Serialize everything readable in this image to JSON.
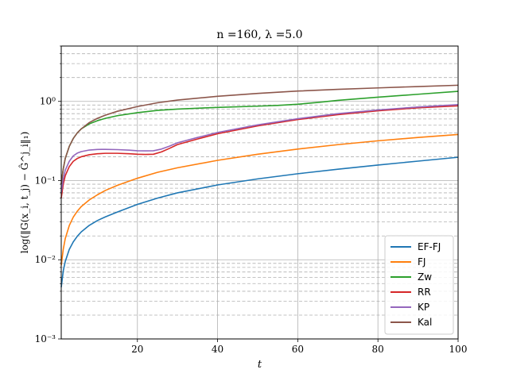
{
  "chart_data": {
    "type": "line",
    "title": "n =160, λ =5.0",
    "xlabel": "t",
    "ylabel": "log(‖G(x_i, t_j) − Ĝ^j_i‖₁)",
    "xscale": "linear",
    "yscale": "log",
    "xlim": [
      1,
      100
    ],
    "ylim": [
      0.001,
      5
    ],
    "x_ticks": [
      20,
      40,
      60,
      80,
      100
    ],
    "x_tick_labels": [
      "20",
      "40",
      "60",
      "80",
      "100"
    ],
    "y_ticks": [
      0.001,
      0.01,
      0.1,
      1
    ],
    "y_tick_labels": [
      "10⁻³",
      "10⁻²",
      "10⁻¹",
      "10⁰"
    ],
    "grid": true,
    "legend_position": "lower-right",
    "series": [
      {
        "name": "EF-FJ",
        "color": "#1f77b4",
        "x": [
          1,
          1.5,
          2,
          3,
          4,
          5,
          6,
          8,
          10,
          12,
          15,
          20,
          25,
          30,
          40,
          50,
          60,
          70,
          80,
          90,
          100
        ],
        "y": [
          0.0045,
          0.0072,
          0.0095,
          0.0135,
          0.0168,
          0.0198,
          0.0225,
          0.0272,
          0.0312,
          0.0348,
          0.04,
          0.05,
          0.06,
          0.07,
          0.088,
          0.105,
          0.122,
          0.139,
          0.157,
          0.176,
          0.197
        ]
      },
      {
        "name": "FJ",
        "color": "#ff7f0e",
        "x": [
          1,
          1.5,
          2,
          3,
          4,
          5,
          6,
          8,
          10,
          12,
          15,
          20,
          25,
          30,
          40,
          50,
          60,
          70,
          80,
          90,
          100
        ],
        "y": [
          0.0085,
          0.0135,
          0.0185,
          0.027,
          0.0345,
          0.041,
          0.047,
          0.057,
          0.066,
          0.075,
          0.087,
          0.107,
          0.127,
          0.145,
          0.18,
          0.215,
          0.25,
          0.284,
          0.318,
          0.35,
          0.382
        ]
      },
      {
        "name": "Zw",
        "color": "#2ca02c",
        "x": [
          1,
          1.5,
          2,
          3,
          4,
          5,
          6,
          8,
          10,
          12,
          15,
          20,
          25,
          30,
          40,
          50,
          55,
          60,
          65,
          70,
          80,
          90,
          100
        ],
        "y": [
          0.09,
          0.14,
          0.19,
          0.27,
          0.34,
          0.4,
          0.45,
          0.52,
          0.57,
          0.61,
          0.66,
          0.72,
          0.77,
          0.8,
          0.84,
          0.87,
          0.89,
          0.92,
          0.97,
          1.03,
          1.13,
          1.23,
          1.34
        ]
      },
      {
        "name": "RR",
        "color": "#d62728",
        "x": [
          1,
          1.5,
          2,
          3,
          4,
          5,
          6,
          8,
          10,
          12,
          15,
          18,
          20,
          22,
          24,
          26,
          28,
          30,
          35,
          40,
          50,
          60,
          70,
          80,
          90,
          100
        ],
        "y": [
          0.06,
          0.09,
          0.115,
          0.15,
          0.175,
          0.19,
          0.2,
          0.212,
          0.218,
          0.221,
          0.221,
          0.218,
          0.215,
          0.214,
          0.215,
          0.23,
          0.255,
          0.285,
          0.335,
          0.39,
          0.49,
          0.59,
          0.68,
          0.76,
          0.83,
          0.88
        ]
      },
      {
        "name": "KP",
        "color": "#9467bd",
        "x": [
          1,
          1.5,
          2,
          3,
          4,
          5,
          6,
          8,
          10,
          12,
          15,
          18,
          20,
          22,
          24,
          26,
          28,
          30,
          35,
          40,
          50,
          60,
          70,
          80,
          90,
          100
        ],
        "y": [
          0.07,
          0.105,
          0.135,
          0.175,
          0.205,
          0.222,
          0.232,
          0.243,
          0.247,
          0.248,
          0.246,
          0.242,
          0.238,
          0.237,
          0.238,
          0.25,
          0.272,
          0.3,
          0.35,
          0.405,
          0.505,
          0.605,
          0.7,
          0.78,
          0.85,
          0.91
        ]
      },
      {
        "name": "Kal",
        "color": "#8c564b",
        "x": [
          1,
          1.5,
          2,
          3,
          4,
          5,
          6,
          8,
          10,
          12,
          15,
          20,
          25,
          30,
          40,
          50,
          60,
          70,
          80,
          90,
          100
        ],
        "y": [
          0.09,
          0.14,
          0.19,
          0.27,
          0.34,
          0.4,
          0.45,
          0.54,
          0.61,
          0.67,
          0.75,
          0.86,
          0.96,
          1.04,
          1.16,
          1.26,
          1.35,
          1.42,
          1.48,
          1.54,
          1.6
        ]
      }
    ]
  }
}
